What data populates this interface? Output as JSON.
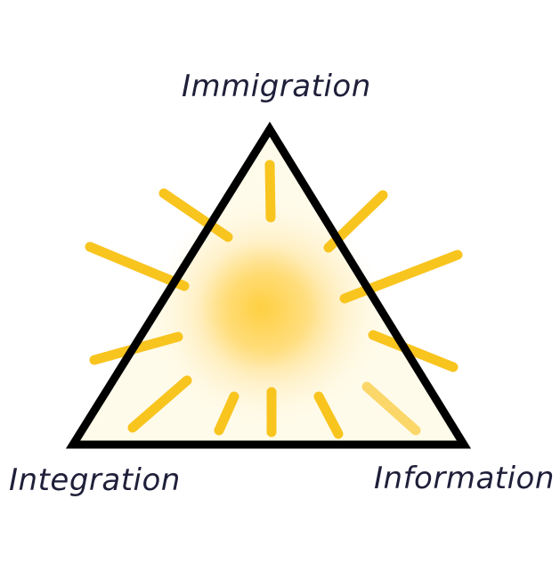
{
  "diagram": {
    "labels": {
      "top": "Immigration",
      "left": "Integration",
      "right": "Information"
    },
    "colors": {
      "triangle_stroke": "#000000",
      "triangle_fill": "#fffbea",
      "ray": "#f8c41e",
      "sun_core": "#ffd24d",
      "sun_glow": "#ffe9a0",
      "label_text": "#1f1f3a"
    }
  }
}
